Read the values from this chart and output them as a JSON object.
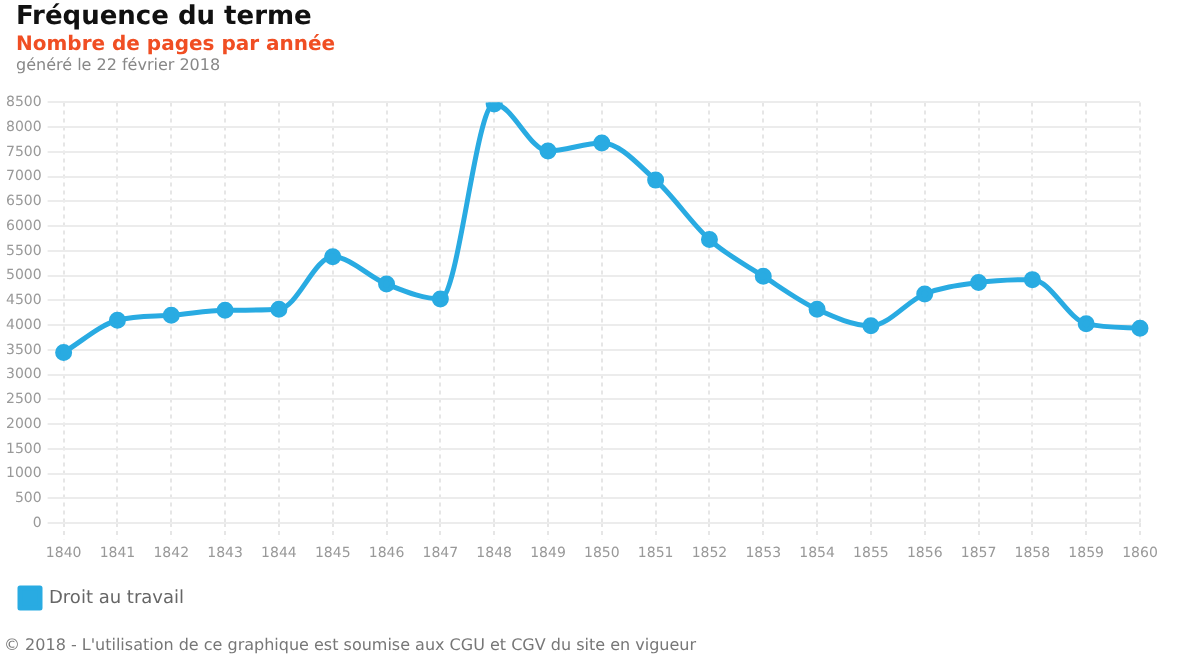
{
  "chart_data": {
    "type": "line",
    "title": "Fréquence du terme",
    "subtitle": "Nombre de pages par année",
    "annotations": [
      "généré le 22 février 2018",
      "© 2018 - L'utilisation de ce graphique est soumise aux CGU et CGV du site en vigueur"
    ],
    "categories": [
      "1840",
      "1841",
      "1842",
      "1843",
      "1844",
      "1845",
      "1846",
      "1847",
      "1848",
      "1849",
      "1850",
      "1851",
      "1852",
      "1853",
      "1854",
      "1855",
      "1856",
      "1857",
      "1858",
      "1859",
      "1860"
    ],
    "series": [
      {
        "name": "Droit au travail",
        "color": "#29abe2",
        "values": [
          3450,
          4100,
          4200,
          4300,
          4320,
          5380,
          4830,
          4530,
          8470,
          7520,
          7680,
          6930,
          5730,
          4990,
          4320,
          3990,
          4630,
          4860,
          4920,
          4030,
          3940
        ]
      }
    ],
    "ylim": [
      0,
      8500
    ],
    "yticks": [
      0,
      500,
      1000,
      1500,
      2000,
      2500,
      3000,
      3500,
      4000,
      4500,
      5000,
      5500,
      6000,
      6500,
      7000,
      7500,
      8000,
      8500
    ],
    "grid": true,
    "legend": "bottom left",
    "marker": "circle",
    "line_style": "solid"
  }
}
